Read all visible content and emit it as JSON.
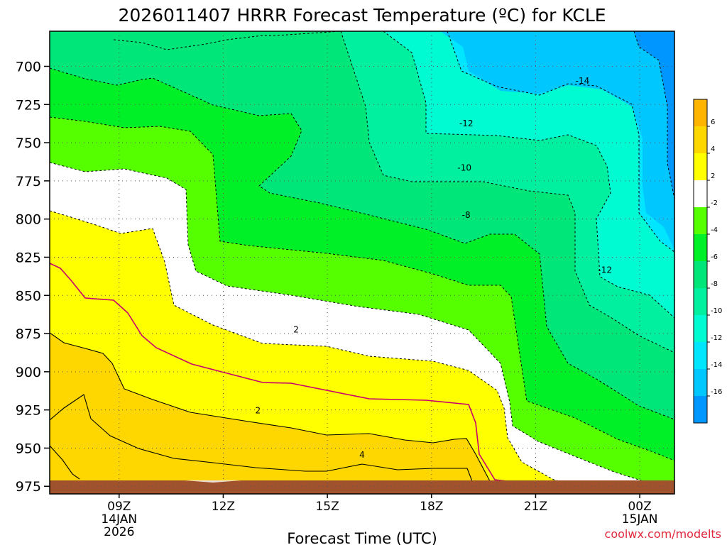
{
  "chart_data": {
    "type": "heatmap",
    "title": "2026011407 HRRR Forecast Temperature (ºC) for KCLE",
    "xlabel": "Forecast Time (UTC)",
    "ylabel": "",
    "credit": "coolwx.com/modelts",
    "x_range_hours": [
      7,
      25
    ],
    "y_range_hpa": [
      677,
      980
    ],
    "x_ticks": [
      {
        "hour": 9,
        "label": "09Z",
        "date": "14JAN",
        "year": "2026"
      },
      {
        "hour": 12,
        "label": "12Z",
        "date": "",
        "year": ""
      },
      {
        "hour": 15,
        "label": "15Z",
        "date": "",
        "year": ""
      },
      {
        "hour": 18,
        "label": "18Z",
        "date": "",
        "year": ""
      },
      {
        "hour": 21,
        "label": "21Z",
        "date": "",
        "year": ""
      },
      {
        "hour": 24,
        "label": "00Z",
        "date": "15JAN",
        "year": ""
      }
    ],
    "y_ticks": [
      700,
      725,
      750,
      775,
      800,
      825,
      850,
      875,
      900,
      925,
      950,
      975
    ],
    "grid": true,
    "colorbar": {
      "levels": [
        {
          "from": 6,
          "to": 8,
          "color": "#ffb400",
          "label": "6"
        },
        {
          "from": 4,
          "to": 6,
          "color": "#ffd700",
          "label": "4"
        },
        {
          "from": 2,
          "to": 4,
          "color": "#ffff00",
          "label": "2"
        },
        {
          "from": -2,
          "to": 2,
          "color": "#ffffff",
          "label": "-2"
        },
        {
          "from": -4,
          "to": -2,
          "color": "#55ff00",
          "label": "-4"
        },
        {
          "from": -6,
          "to": -4,
          "color": "#00f028",
          "label": "-6"
        },
        {
          "from": -8,
          "to": -6,
          "color": "#00e678",
          "label": "-8"
        },
        {
          "from": -10,
          "to": -8,
          "color": "#00f0a0",
          "label": "-10"
        },
        {
          "from": -12,
          "to": -10,
          "color": "#00fad2",
          "label": "-12"
        },
        {
          "from": -14,
          "to": -12,
          "color": "#00e6ff",
          "label": "-14"
        },
        {
          "from": -16,
          "to": -14,
          "color": "#00c8ff",
          "label": "-16"
        },
        {
          "from": -18,
          "to": -16,
          "color": "#0096ff",
          "label": ""
        }
      ]
    },
    "contour_labels": [
      {
        "value": "-14",
        "hour": 22.35,
        "hpa": 709
      },
      {
        "value": "-12",
        "hour": 19.0,
        "hpa": 737
      },
      {
        "value": "-10",
        "hour": 18.95,
        "hpa": 766
      },
      {
        "value": "-8",
        "hour": 19.0,
        "hpa": 797
      },
      {
        "value": "-12",
        "hour": 23.0,
        "hpa": 833
      },
      {
        "value": "2",
        "hour": 14.1,
        "hpa": 872
      },
      {
        "value": "2",
        "hour": 13.0,
        "hpa": 925
      },
      {
        "value": "4",
        "hour": 16.0,
        "hpa": 954
      }
    ]
  }
}
